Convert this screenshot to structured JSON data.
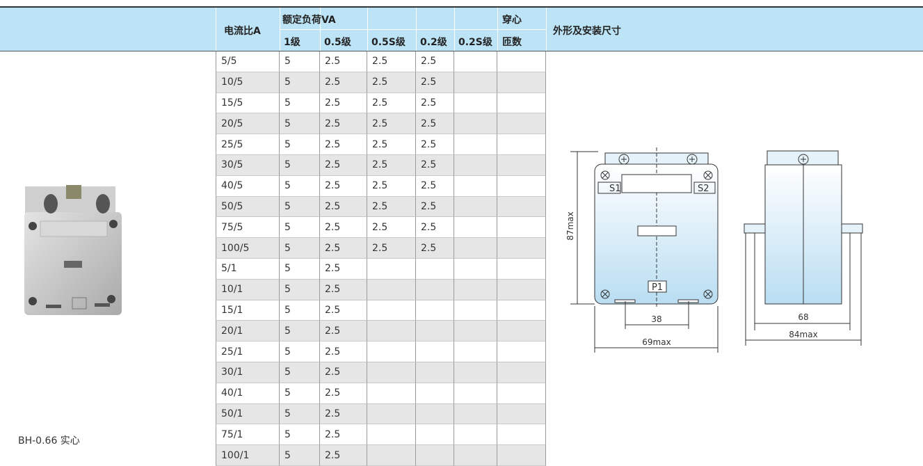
{
  "table": {
    "header": {
      "ratio": "电流比A",
      "rated_load": "额定负荷VA",
      "classes": [
        "1级",
        "0.5级",
        "0.5S级",
        "0.2级",
        "0.2S级"
      ],
      "turns": [
        "穿心",
        "匝数"
      ],
      "outline": "外形及安装尺寸"
    },
    "rows": [
      [
        "5/5",
        5,
        2.5,
        2.5,
        2.5
      ],
      [
        "10/5",
        5,
        2.5,
        2.5,
        2.5
      ],
      [
        "15/5",
        5,
        2.5,
        2.5,
        2.5
      ],
      [
        "20/5",
        5,
        2.5,
        2.5,
        2.5
      ],
      [
        "25/5",
        5,
        2.5,
        2.5,
        2.5
      ],
      [
        "30/5",
        5,
        2.5,
        2.5,
        2.5
      ],
      [
        "40/5",
        5,
        2.5,
        2.5,
        2.5
      ],
      [
        "50/5",
        5,
        2.5,
        2.5,
        2.5
      ],
      [
        "75/5",
        5,
        2.5,
        2.5,
        2.5
      ],
      [
        "100/5",
        5,
        2.5,
        2.5,
        2.5
      ],
      [
        "5/1",
        5,
        2.5
      ],
      [
        "10/1",
        5,
        2.5
      ],
      [
        "15/1",
        5,
        2.5
      ],
      [
        "20/1",
        5,
        2.5
      ],
      [
        "25/1",
        5,
        2.5
      ],
      [
        "30/1",
        5,
        2.5
      ],
      [
        "40/1",
        5,
        2.5
      ],
      [
        "50/1",
        5,
        2.5
      ],
      [
        "75/1",
        5,
        2.5
      ],
      [
        "100/1",
        5,
        2.5
      ]
    ]
  },
  "product": {
    "caption": "BH-0.66 实心"
  },
  "diagram": {
    "labels": {
      "s1": "S1",
      "s2": "S2",
      "p1": "P1",
      "height": "87max",
      "hole_spacing": "38",
      "width": "69max",
      "core_width": "68",
      "depth": "84max"
    }
  }
}
